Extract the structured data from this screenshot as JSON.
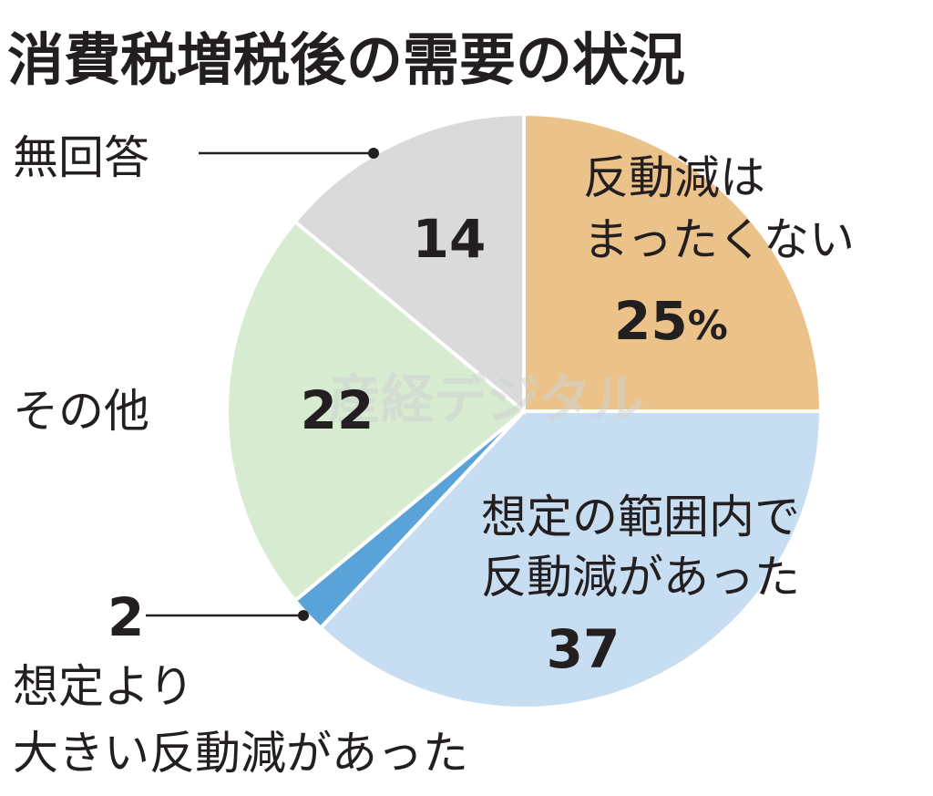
{
  "chart_data": {
    "type": "pie",
    "title": "消費税増税後の需要の状況",
    "unit": "%",
    "slices": [
      {
        "label": [
          "反動減は",
          "まったくない"
        ],
        "value": 25,
        "value_text": "25",
        "unit_text": "%",
        "color": "#ebc38a"
      },
      {
        "label": [
          "想定の範囲内で",
          "反動減があった"
        ],
        "value": 37,
        "value_text": "37",
        "color": "#c7ddf2"
      },
      {
        "label": [
          "想定より",
          "大きい反動減があった"
        ],
        "value": 2,
        "value_text": "2",
        "color": "#5aa3d8"
      },
      {
        "label": [
          "その他"
        ],
        "value": 22,
        "value_text": "22",
        "color": "#d6ebcf"
      },
      {
        "label": [
          "無回答"
        ],
        "value": 14,
        "value_text": "14",
        "color": "#dadada"
      }
    ],
    "start_angle_deg": 0,
    "direction": "clockwise"
  },
  "watermark": "産経デジタル"
}
